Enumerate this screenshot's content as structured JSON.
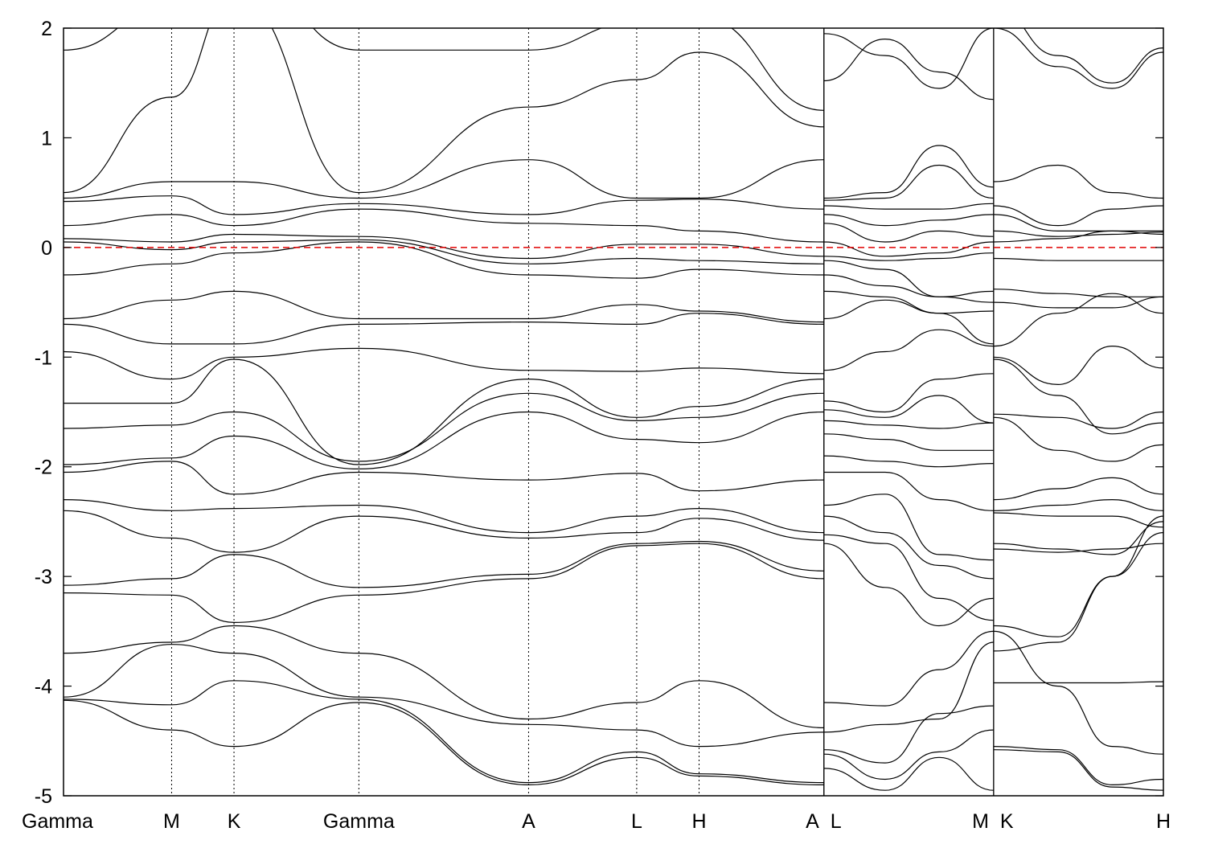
{
  "chart_data": {
    "type": "line",
    "title": "",
    "xlabel": "",
    "ylabel": "",
    "ylim": [
      -5,
      2
    ],
    "yticks": [
      2,
      1,
      0,
      -1,
      -2,
      -3,
      -4,
      -5
    ],
    "fermi_level": 0,
    "fermi_line_color": "#e00000",
    "k_path": [
      {
        "label": "Gamma",
        "pos": 0.0,
        "boundary": true
      },
      {
        "label": "M",
        "pos": 1.0,
        "boundary": false
      },
      {
        "label": "K",
        "pos": 1.577,
        "boundary": false
      },
      {
        "label": "Gamma",
        "pos": 2.732,
        "boundary": false
      },
      {
        "label": "A",
        "pos": 4.302,
        "boundary": false
      },
      {
        "label": "L",
        "pos": 5.302,
        "boundary": false
      },
      {
        "label": "H",
        "pos": 5.879,
        "boundary": false
      },
      {
        "label": "A",
        "pos": 7.034,
        "boundary": true
      },
      {
        "label": "L",
        "pos": 7.034,
        "boundary": true
      },
      {
        "label": "M",
        "pos": 8.604,
        "boundary": true
      },
      {
        "label": "K",
        "pos": 8.604,
        "boundary": true
      },
      {
        "label": "H",
        "pos": 10.174,
        "boundary": true
      }
    ],
    "segments": [
      {
        "from": 0.0,
        "to": 7.034
      },
      {
        "from": 7.034,
        "to": 8.604
      },
      {
        "from": 8.604,
        "to": 10.174
      }
    ],
    "bands": [
      {
        "x": [
          0,
          1.0,
          1.577,
          2.732,
          4.302,
          5.302,
          5.879,
          7.034
        ],
        "y": [
          1.8,
          2.2,
          2.6,
          1.8,
          1.8,
          2.05,
          2.1,
          1.25
        ]
      },
      {
        "x": [
          0,
          1.0,
          1.577,
          2.732,
          4.302,
          5.302,
          5.879,
          7.034
        ],
        "y": [
          0.5,
          1.37,
          2.3,
          0.5,
          1.28,
          1.53,
          1.78,
          1.1
        ]
      },
      {
        "x": [
          0,
          1.0,
          1.577,
          2.732,
          4.302,
          5.302,
          5.879,
          7.034
        ],
        "y": [
          0.45,
          0.6,
          0.6,
          0.45,
          0.8,
          0.45,
          0.45,
          0.8
        ]
      },
      {
        "x": [
          0,
          1.0,
          1.577,
          2.732,
          4.302,
          5.302,
          5.879,
          7.034
        ],
        "y": [
          0.42,
          0.47,
          0.3,
          0.4,
          0.3,
          0.43,
          0.44,
          0.35
        ]
      },
      {
        "x": [
          0,
          1.0,
          1.577,
          2.732,
          4.302,
          5.302,
          5.879,
          7.034
        ],
        "y": [
          0.2,
          0.3,
          0.2,
          0.35,
          0.22,
          0.2,
          0.15,
          0.05
        ]
      },
      {
        "x": [
          0,
          1.0,
          1.577,
          2.732,
          4.302,
          5.302,
          5.879,
          7.034
        ],
        "y": [
          0.08,
          0.05,
          0.12,
          0.1,
          -0.1,
          0.03,
          0.03,
          -0.08
        ]
      },
      {
        "x": [
          0,
          1.0,
          1.577,
          2.732,
          4.302,
          5.302,
          5.879,
          7.034
        ],
        "y": [
          0.05,
          -0.02,
          0.05,
          0.07,
          -0.15,
          -0.1,
          -0.12,
          -0.15
        ]
      },
      {
        "x": [
          0,
          1.0,
          1.577,
          2.732,
          4.302,
          5.302,
          5.879,
          7.034
        ],
        "y": [
          -0.25,
          -0.15,
          -0.05,
          0.05,
          -0.25,
          -0.28,
          -0.2,
          -0.25
        ]
      },
      {
        "x": [
          0,
          1.0,
          1.577,
          2.732,
          4.302,
          5.302,
          5.879,
          7.034
        ],
        "y": [
          -0.65,
          -0.48,
          -0.4,
          -0.65,
          -0.65,
          -0.52,
          -0.58,
          -0.68
        ]
      },
      {
        "x": [
          0,
          1.0,
          1.577,
          2.732,
          4.302,
          5.302,
          5.879,
          7.034
        ],
        "y": [
          -0.7,
          -0.88,
          -0.88,
          -0.7,
          -0.68,
          -0.7,
          -0.6,
          -0.7
        ]
      },
      {
        "x": [
          0,
          1.0,
          1.577,
          2.732,
          4.302,
          5.302,
          5.879,
          7.034
        ],
        "y": [
          -0.95,
          -1.2,
          -1.0,
          -0.92,
          -1.12,
          -1.13,
          -1.1,
          -1.15
        ]
      },
      {
        "x": [
          0,
          1.0,
          1.577,
          2.732,
          4.302,
          5.302,
          5.879,
          7.034
        ],
        "y": [
          -1.42,
          -1.42,
          -1.02,
          -1.98,
          -1.2,
          -1.55,
          -1.45,
          -1.2
        ]
      },
      {
        "x": [
          0,
          1.0,
          1.577,
          2.732,
          4.302,
          5.302,
          5.879,
          7.034
        ],
        "y": [
          -1.65,
          -1.62,
          -1.5,
          -1.95,
          -1.33,
          -1.58,
          -1.55,
          -1.33
        ]
      },
      {
        "x": [
          0,
          1.0,
          1.577,
          2.732,
          4.302,
          5.302,
          5.879,
          7.034
        ],
        "y": [
          -1.98,
          -1.92,
          -1.72,
          -2.02,
          -1.5,
          -1.75,
          -1.78,
          -1.5
        ]
      },
      {
        "x": [
          0,
          1.0,
          1.577,
          2.732,
          4.302,
          5.302,
          5.879,
          7.034
        ],
        "y": [
          -2.05,
          -1.95,
          -2.25,
          -2.05,
          -2.12,
          -2.06,
          -2.22,
          -2.12
        ]
      },
      {
        "x": [
          0,
          1.0,
          1.577,
          2.732,
          4.302,
          5.302,
          5.879,
          7.034
        ],
        "y": [
          -2.3,
          -2.4,
          -2.38,
          -2.35,
          -2.6,
          -2.45,
          -2.38,
          -2.6
        ]
      },
      {
        "x": [
          0,
          1.0,
          1.577,
          2.732,
          4.302,
          5.302,
          5.879,
          7.034
        ],
        "y": [
          -2.4,
          -2.65,
          -2.78,
          -2.45,
          -2.65,
          -2.6,
          -2.47,
          -2.67
        ]
      },
      {
        "x": [
          0,
          1.0,
          1.577,
          2.732,
          4.302,
          5.302,
          5.879,
          7.034
        ],
        "y": [
          -3.08,
          -3.02,
          -2.8,
          -3.1,
          -2.98,
          -2.7,
          -2.68,
          -2.95
        ]
      },
      {
        "x": [
          0,
          1.0,
          1.577,
          2.732,
          4.302,
          5.302,
          5.879,
          7.034
        ],
        "y": [
          -3.15,
          -3.17,
          -3.42,
          -3.17,
          -3.02,
          -2.72,
          -2.7,
          -3.02
        ]
      },
      {
        "x": [
          0,
          1.0,
          1.577,
          2.732,
          4.302,
          5.302,
          5.879,
          7.034
        ],
        "y": [
          -3.7,
          -3.6,
          -3.45,
          -3.7,
          -4.3,
          -4.15,
          -3.95,
          -4.38
        ]
      },
      {
        "x": [
          0,
          1.0,
          1.577,
          2.732,
          4.302,
          5.302,
          5.879,
          7.034
        ],
        "y": [
          -4.1,
          -3.62,
          -3.7,
          -4.1,
          -4.35,
          -4.4,
          -4.55,
          -4.42
        ]
      },
      {
        "x": [
          0,
          1.0,
          1.577,
          2.732,
          4.302,
          5.302,
          5.879,
          7.034
        ],
        "y": [
          -4.12,
          -4.17,
          -3.95,
          -4.12,
          -4.88,
          -4.6,
          -4.8,
          -4.88
        ]
      },
      {
        "x": [
          0,
          1.0,
          1.577,
          2.732,
          4.302,
          5.302,
          5.879,
          7.034
        ],
        "y": [
          -4.13,
          -4.4,
          -4.55,
          -4.15,
          -4.9,
          -4.65,
          -4.82,
          -4.9
        ]
      },
      {
        "x": [
          7.034,
          7.6,
          8.1,
          8.604
        ],
        "y": [
          1.52,
          1.9,
          1.6,
          1.35
        ]
      },
      {
        "x": [
          7.034,
          7.6,
          8.1,
          8.604
        ],
        "y": [
          1.95,
          1.75,
          1.45,
          2.0
        ]
      },
      {
        "x": [
          7.034,
          7.6,
          8.1,
          8.604
        ],
        "y": [
          0.45,
          0.5,
          0.93,
          0.55
        ]
      },
      {
        "x": [
          7.034,
          7.6,
          8.1,
          8.604
        ],
        "y": [
          0.43,
          0.45,
          0.75,
          0.45
        ]
      },
      {
        "x": [
          7.034,
          7.6,
          8.1,
          8.604
        ],
        "y": [
          0.38,
          0.35,
          0.35,
          0.4
        ]
      },
      {
        "x": [
          7.034,
          7.6,
          8.1,
          8.604
        ],
        "y": [
          0.3,
          0.2,
          0.25,
          0.3
        ]
      },
      {
        "x": [
          7.034,
          7.6,
          8.1,
          8.604
        ],
        "y": [
          0.22,
          0.05,
          0.15,
          0.1
        ]
      },
      {
        "x": [
          7.034,
          7.6,
          8.1,
          8.604
        ],
        "y": [
          0.05,
          -0.08,
          -0.05,
          0.05
        ]
      },
      {
        "x": [
          7.034,
          7.6,
          8.1,
          8.604
        ],
        "y": [
          -0.08,
          -0.12,
          -0.1,
          -0.05
        ]
      },
      {
        "x": [
          7.034,
          7.6,
          8.1,
          8.604
        ],
        "y": [
          -0.12,
          -0.2,
          -0.45,
          -0.4
        ]
      },
      {
        "x": [
          7.034,
          7.6,
          8.1,
          8.604
        ],
        "y": [
          -0.25,
          -0.35,
          -0.45,
          -0.5
        ]
      },
      {
        "x": [
          7.034,
          7.6,
          8.1,
          8.604
        ],
        "y": [
          -0.4,
          -0.45,
          -0.6,
          -0.58
        ]
      },
      {
        "x": [
          7.034,
          7.6,
          8.1,
          8.604
        ],
        "y": [
          -0.65,
          -0.48,
          -0.6,
          -0.88
        ]
      },
      {
        "x": [
          7.034,
          7.6,
          8.1,
          8.604
        ],
        "y": [
          -1.12,
          -0.95,
          -0.75,
          -0.9
        ]
      },
      {
        "x": [
          7.034,
          7.6,
          8.1,
          8.604
        ],
        "y": [
          -1.4,
          -1.5,
          -1.2,
          -1.15
        ]
      },
      {
        "x": [
          7.034,
          7.6,
          8.1,
          8.604
        ],
        "y": [
          -1.48,
          -1.55,
          -1.35,
          -1.6
        ]
      },
      {
        "x": [
          7.034,
          7.6,
          8.1,
          8.604
        ],
        "y": [
          -1.58,
          -1.62,
          -1.65,
          -1.6
        ]
      },
      {
        "x": [
          7.034,
          7.6,
          8.1,
          8.604
        ],
        "y": [
          -1.7,
          -1.75,
          -1.85,
          -1.85
        ]
      },
      {
        "x": [
          7.034,
          7.6,
          8.1,
          8.604
        ],
        "y": [
          -1.9,
          -1.95,
          -2.0,
          -1.97
        ]
      },
      {
        "x": [
          7.034,
          7.6,
          8.1,
          8.604
        ],
        "y": [
          -2.05,
          -2.05,
          -2.3,
          -2.4
        ]
      },
      {
        "x": [
          7.034,
          7.6,
          8.1,
          8.604
        ],
        "y": [
          -2.35,
          -2.25,
          -2.8,
          -2.85
        ]
      },
      {
        "x": [
          7.034,
          7.6,
          8.1,
          8.604
        ],
        "y": [
          -2.45,
          -2.6,
          -2.9,
          -3.02
        ]
      },
      {
        "x": [
          7.034,
          7.6,
          8.1,
          8.604
        ],
        "y": [
          -2.62,
          -2.7,
          -3.2,
          -3.4
        ]
      },
      {
        "x": [
          7.034,
          7.6,
          8.1,
          8.604
        ],
        "y": [
          -2.7,
          -3.1,
          -3.45,
          -3.2
        ]
      },
      {
        "x": [
          7.034,
          7.6,
          8.1,
          8.604
        ],
        "y": [
          -4.15,
          -4.18,
          -3.85,
          -3.5
        ]
      },
      {
        "x": [
          7.034,
          7.6,
          8.1,
          8.604
        ],
        "y": [
          -4.42,
          -4.35,
          -4.3,
          -3.6
        ]
      },
      {
        "x": [
          7.034,
          7.6,
          8.1,
          8.604
        ],
        "y": [
          -4.58,
          -4.7,
          -4.25,
          -4.18
        ]
      },
      {
        "x": [
          7.034,
          7.6,
          8.1,
          8.604
        ],
        "y": [
          -4.62,
          -4.85,
          -4.6,
          -4.4
        ]
      },
      {
        "x": [
          7.034,
          7.6,
          8.1,
          8.604
        ],
        "y": [
          -4.75,
          -4.95,
          -4.65,
          -4.95
        ]
      },
      {
        "x": [
          8.604,
          9.2,
          9.7,
          10.174
        ],
        "y": [
          2.2,
          1.75,
          1.5,
          1.82
        ]
      },
      {
        "x": [
          8.604,
          9.2,
          9.7,
          10.174
        ],
        "y": [
          2.0,
          1.65,
          1.45,
          1.78
        ]
      },
      {
        "x": [
          8.604,
          9.2,
          9.7,
          10.174
        ],
        "y": [
          0.6,
          0.75,
          0.5,
          0.45
        ]
      },
      {
        "x": [
          8.604,
          9.2,
          9.7,
          10.174
        ],
        "y": [
          0.38,
          0.2,
          0.35,
          0.38
        ]
      },
      {
        "x": [
          8.604,
          9.2,
          9.7,
          10.174
        ],
        "y": [
          0.3,
          0.15,
          0.15,
          0.15
        ]
      },
      {
        "x": [
          8.604,
          9.2,
          9.7,
          10.174
        ],
        "y": [
          0.15,
          0.1,
          0.12,
          0.14
        ]
      },
      {
        "x": [
          8.604,
          9.2,
          9.7,
          10.174
        ],
        "y": [
          0.05,
          0.08,
          0.15,
          0.12
        ]
      },
      {
        "x": [
          8.604,
          9.2,
          9.7,
          10.174
        ],
        "y": [
          -0.1,
          -0.12,
          -0.12,
          -0.12
        ]
      },
      {
        "x": [
          8.604,
          9.2,
          9.7,
          10.174
        ],
        "y": [
          -0.38,
          -0.42,
          -0.45,
          -0.45
        ]
      },
      {
        "x": [
          8.604,
          9.2,
          9.7,
          10.174
        ],
        "y": [
          -0.5,
          -0.55,
          -0.55,
          -0.45
        ]
      },
      {
        "x": [
          8.604,
          9.2,
          9.7,
          10.174
        ],
        "y": [
          -0.9,
          -0.6,
          -0.42,
          -0.6
        ]
      },
      {
        "x": [
          8.604,
          9.2,
          9.7,
          10.174
        ],
        "y": [
          -1.0,
          -1.25,
          -0.9,
          -1.1
        ]
      },
      {
        "x": [
          8.604,
          9.2,
          9.7,
          10.174
        ],
        "y": [
          -1.02,
          -1.35,
          -1.7,
          -1.6
        ]
      },
      {
        "x": [
          8.604,
          9.2,
          9.7,
          10.174
        ],
        "y": [
          -1.52,
          -1.55,
          -1.65,
          -1.5
        ]
      },
      {
        "x": [
          8.604,
          9.2,
          9.7,
          10.174
        ],
        "y": [
          -1.55,
          -1.85,
          -1.95,
          -1.8
        ]
      },
      {
        "x": [
          8.604,
          9.2,
          9.7,
          10.174
        ],
        "y": [
          -2.3,
          -2.2,
          -2.1,
          -2.25
        ]
      },
      {
        "x": [
          8.604,
          9.2,
          9.7,
          10.174
        ],
        "y": [
          -2.4,
          -2.35,
          -2.3,
          -2.4
        ]
      },
      {
        "x": [
          8.604,
          9.2,
          9.7,
          10.174
        ],
        "y": [
          -2.42,
          -2.45,
          -2.45,
          -2.55
        ]
      },
      {
        "x": [
          8.604,
          9.2,
          9.7,
          10.174
        ],
        "y": [
          -2.7,
          -2.75,
          -2.8,
          -2.5
        ]
      },
      {
        "x": [
          8.604,
          9.2,
          9.7,
          10.174
        ],
        "y": [
          -2.75,
          -2.78,
          -2.75,
          -2.7
        ]
      },
      {
        "x": [
          8.604,
          9.2,
          9.7,
          10.174
        ],
        "y": [
          -3.45,
          -3.55,
          -3.0,
          -2.6
        ]
      },
      {
        "x": [
          8.604,
          9.2,
          9.7,
          10.174
        ],
        "y": [
          -3.68,
          -3.6,
          -3.0,
          -2.45
        ]
      },
      {
        "x": [
          8.604,
          9.2,
          9.7,
          10.174
        ],
        "y": [
          -3.97,
          -3.97,
          -3.97,
          -3.96
        ]
      },
      {
        "x": [
          8.604,
          9.2,
          9.7,
          10.174
        ],
        "y": [
          -3.5,
          -4.0,
          -4.55,
          -4.62
        ]
      },
      {
        "x": [
          8.604,
          9.2,
          9.7,
          10.174
        ],
        "y": [
          -4.55,
          -4.58,
          -4.9,
          -4.85
        ]
      },
      {
        "x": [
          8.604,
          9.2,
          9.7,
          10.174
        ],
        "y": [
          -4.58,
          -4.6,
          -4.92,
          -4.95
        ]
      }
    ]
  }
}
